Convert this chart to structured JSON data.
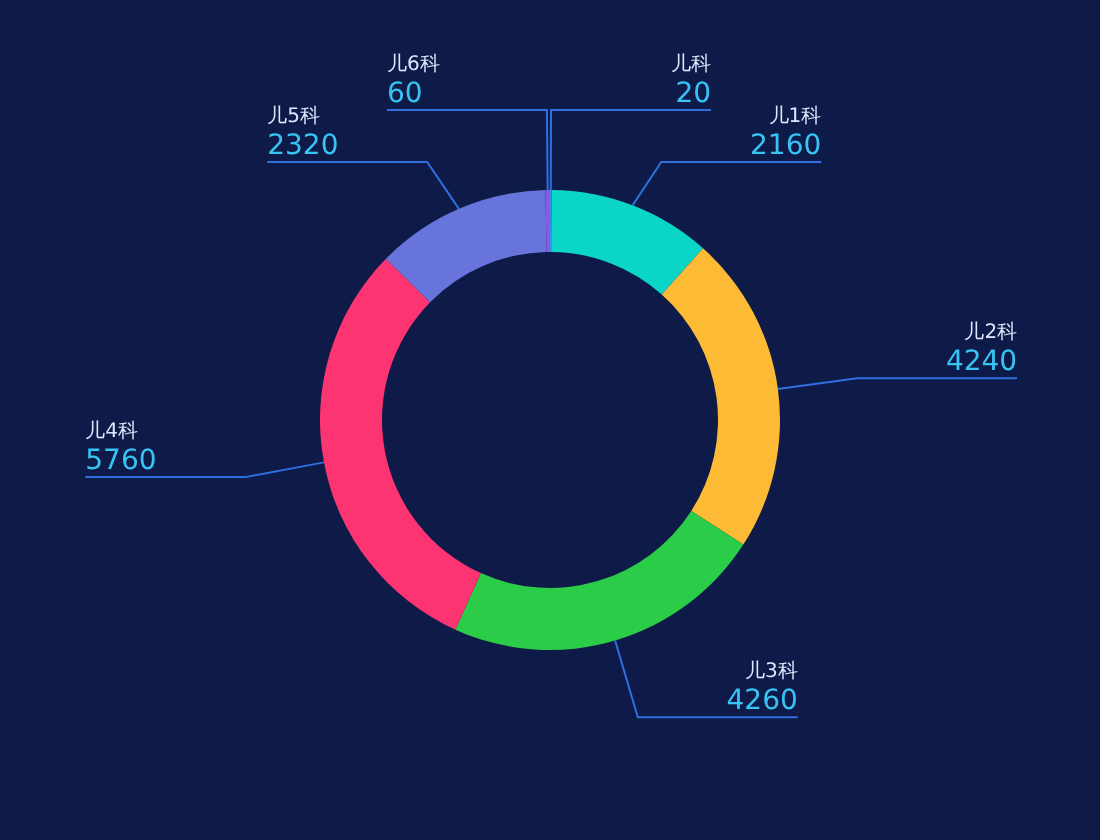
{
  "chart_data": {
    "type": "donut",
    "categories": [
      "儿科",
      "儿1科",
      "儿2科",
      "儿3科",
      "儿4科",
      "儿5科",
      "儿6科"
    ],
    "values": [
      20,
      2160,
      4240,
      4260,
      5760,
      2320,
      60
    ],
    "colors": [
      "#3a8ef0",
      "#0bd5c7",
      "#fdba34",
      "#2bcc47",
      "#fd3472",
      "#6674db",
      "#8a5ce6"
    ],
    "data_labels": true
  }
}
